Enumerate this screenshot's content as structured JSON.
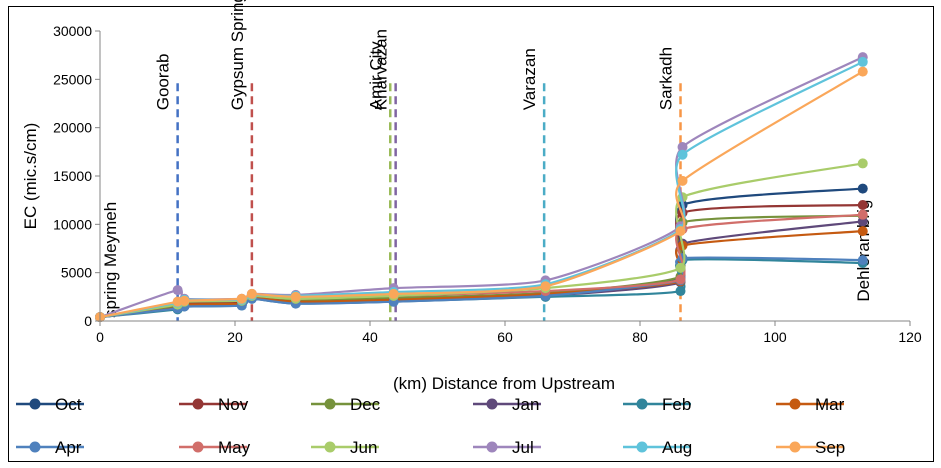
{
  "chart_data": {
    "type": "line",
    "title": "",
    "xlabel": "(km) Distance from Upstream",
    "ylabel": "EC (mic.s/cm)",
    "xlim": [
      0,
      120
    ],
    "ylim": [
      0,
      30000
    ],
    "xticks": [
      0,
      20,
      40,
      60,
      80,
      100,
      120
    ],
    "yticks": [
      0,
      5000,
      10000,
      15000,
      20000,
      25000,
      30000
    ],
    "grid": false,
    "legend_position": "bottom",
    "locations": [
      {
        "name": "spring Meymeh",
        "x": 0,
        "line": false
      },
      {
        "name": "Goorab",
        "x": 11.5,
        "line": true,
        "color": "#4472C4"
      },
      {
        "name": "Gypsum Spring",
        "x": 22.5,
        "line": true,
        "color": "#C0504D"
      },
      {
        "name": "Amir City",
        "x": 43,
        "line": true,
        "color": "#9BBB59"
      },
      {
        "name": "Kharvazan",
        "x": 43.8,
        "line": true,
        "color": "#8064A2"
      },
      {
        "name": "Varazan",
        "x": 65.8,
        "line": true,
        "color": "#4BACC6"
      },
      {
        "name": "Sarkadh",
        "x": 86,
        "line": true,
        "color": "#F79646"
      },
      {
        "name": "Dehloran brig",
        "x": 113,
        "line": false
      }
    ],
    "x": [
      0,
      11.5,
      12.5,
      21,
      22.5,
      29,
      43.5,
      66,
      86,
      86.3,
      113
    ],
    "series": [
      {
        "name": "Oct",
        "color": "#1F497D",
        "values": [
          400,
          1500,
          1900,
          2000,
          2600,
          2100,
          2300,
          2800,
          4500,
          12000,
          13700
        ]
      },
      {
        "name": "Nov",
        "color": "#943634",
        "values": [
          400,
          1400,
          1800,
          1900,
          2500,
          2000,
          2200,
          2700,
          4200,
          11200,
          12000
        ]
      },
      {
        "name": "Dec",
        "color": "#76923C",
        "values": [
          400,
          1600,
          2000,
          2100,
          2700,
          2200,
          2400,
          2900,
          4600,
          10200,
          10900
        ]
      },
      {
        "name": "Jan",
        "color": "#5F497A",
        "values": [
          400,
          1300,
          1600,
          1700,
          2400,
          1900,
          2100,
          2600,
          4000,
          8000,
          10300
        ]
      },
      {
        "name": "Feb",
        "color": "#31859B",
        "values": [
          400,
          1200,
          1500,
          1600,
          2300,
          1800,
          2000,
          2500,
          3100,
          6300,
          6000
        ]
      },
      {
        "name": "Mar",
        "color": "#C55A11",
        "values": [
          400,
          1350,
          1700,
          1800,
          2400,
          2000,
          2200,
          2800,
          4100,
          7800,
          9300
        ]
      },
      {
        "name": "Apr",
        "color": "#4F81BD",
        "values": [
          400,
          1300,
          1500,
          1600,
          2300,
          1800,
          2000,
          2600,
          4200,
          6500,
          6300
        ]
      },
      {
        "name": "May",
        "color": "#D16E6A",
        "values": [
          400,
          1800,
          2100,
          2200,
          2700,
          2300,
          2600,
          3100,
          4300,
          9500,
          11000
        ]
      },
      {
        "name": "Jun",
        "color": "#A9CC6A",
        "values": [
          400,
          1700,
          2000,
          2100,
          2600,
          2300,
          2600,
          3400,
          5500,
          12800,
          16300
        ]
      },
      {
        "name": "Jul",
        "color": "#9E86BC",
        "values": [
          400,
          3200,
          2300,
          2300,
          2800,
          2700,
          3400,
          4200,
          9800,
          18000,
          27300
        ]
      },
      {
        "name": "Aug",
        "color": "#5FC3DB",
        "values": [
          400,
          1900,
          2200,
          2200,
          2700,
          2600,
          3000,
          3800,
          9500,
          17200,
          26800
        ]
      },
      {
        "name": "Sep",
        "color": "#FAA75A",
        "values": [
          400,
          2000,
          2100,
          2300,
          2800,
          2500,
          2800,
          3600,
          9300,
          14500,
          25800
        ]
      }
    ]
  }
}
